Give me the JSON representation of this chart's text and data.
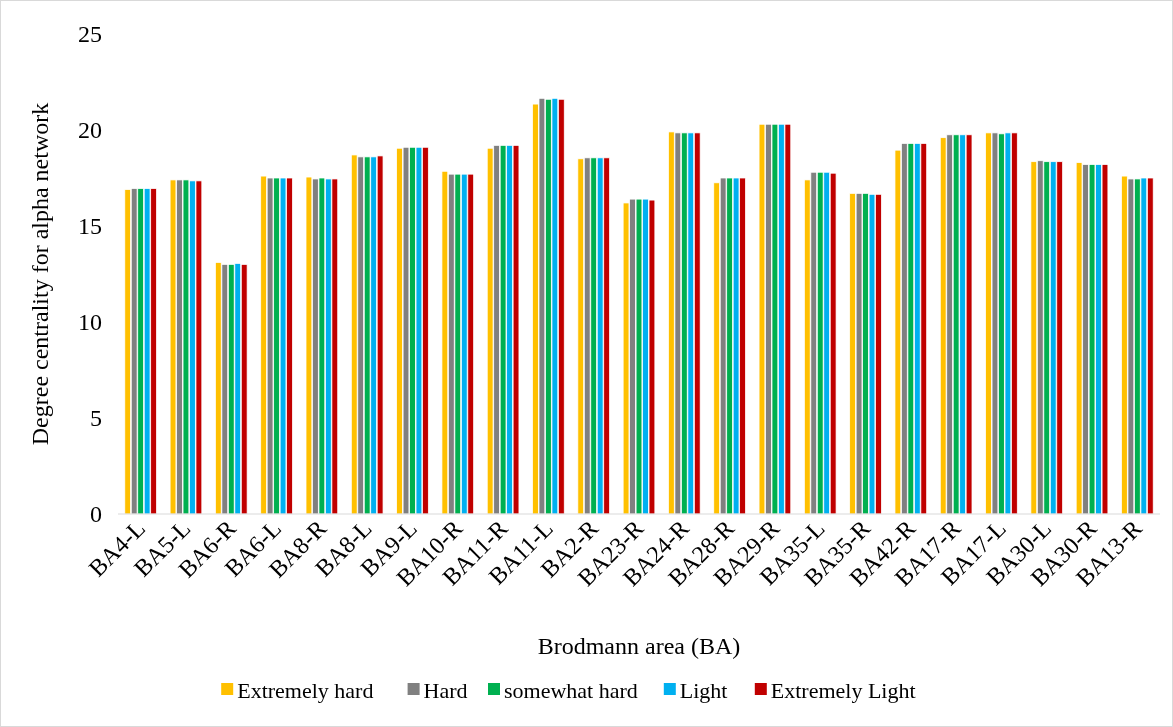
{
  "chart_data": {
    "type": "bar",
    "xlabel": "Brodmann area (BA)",
    "ylabel": "Degree centrality for alpha network",
    "categories": [
      "BA4-L",
      "BA5-L",
      "BA6-R",
      "BA6-L",
      "BA8-R",
      "BA8-L",
      "BA9-L",
      "BA10-R",
      "BA11-R",
      "BA11-L",
      "BA2-R",
      "BA23-R",
      "BA24-R",
      "BA28-R",
      "BA29-R",
      "BA35-L",
      "BA35-R",
      "BA42-R",
      "BA17-R",
      "BA17-L",
      "BA30-L",
      "BA30-R",
      "BA13-R"
    ],
    "series": [
      {
        "name": "Extremely hard",
        "color": "#ffc000",
        "values": [
          16.9,
          17.4,
          13.1,
          17.6,
          17.55,
          18.7,
          19.05,
          17.85,
          19.05,
          21.35,
          18.5,
          16.2,
          19.9,
          17.25,
          20.3,
          17.4,
          16.7,
          18.95,
          19.6,
          19.85,
          18.35,
          18.3,
          17.6
        ]
      },
      {
        "name": "Hard",
        "color": "#808080",
        "values": [
          16.95,
          17.4,
          13.0,
          17.5,
          17.45,
          18.6,
          19.1,
          17.7,
          19.2,
          21.65,
          18.55,
          16.4,
          19.85,
          17.5,
          20.3,
          17.8,
          16.7,
          19.3,
          19.75,
          19.85,
          18.4,
          18.2,
          17.45
        ]
      },
      {
        "name": "somewhat hard",
        "color": "#00b050",
        "values": [
          16.95,
          17.4,
          13.0,
          17.5,
          17.5,
          18.6,
          19.1,
          17.7,
          19.2,
          21.6,
          18.55,
          16.4,
          19.85,
          17.5,
          20.3,
          17.8,
          16.7,
          19.3,
          19.75,
          19.8,
          18.35,
          18.2,
          17.45
        ]
      },
      {
        "name": "Light",
        "color": "#00b0f0",
        "values": [
          16.95,
          17.35,
          13.05,
          17.5,
          17.45,
          18.6,
          19.1,
          17.7,
          19.2,
          21.65,
          18.55,
          16.4,
          19.85,
          17.5,
          20.3,
          17.8,
          16.65,
          19.3,
          19.75,
          19.85,
          18.35,
          18.2,
          17.5
        ]
      },
      {
        "name": "Extremely Light",
        "color": "#c00000",
        "values": [
          16.95,
          17.35,
          13.0,
          17.5,
          17.45,
          18.65,
          19.1,
          17.7,
          19.2,
          21.6,
          18.55,
          16.35,
          19.85,
          17.5,
          20.3,
          17.75,
          16.65,
          19.3,
          19.75,
          19.85,
          18.35,
          18.2,
          17.5
        ]
      }
    ],
    "ylim": [
      0,
      25
    ],
    "yticks": [
      0,
      5,
      10,
      15,
      20,
      25
    ],
    "grid": false,
    "legend": "bottom"
  }
}
